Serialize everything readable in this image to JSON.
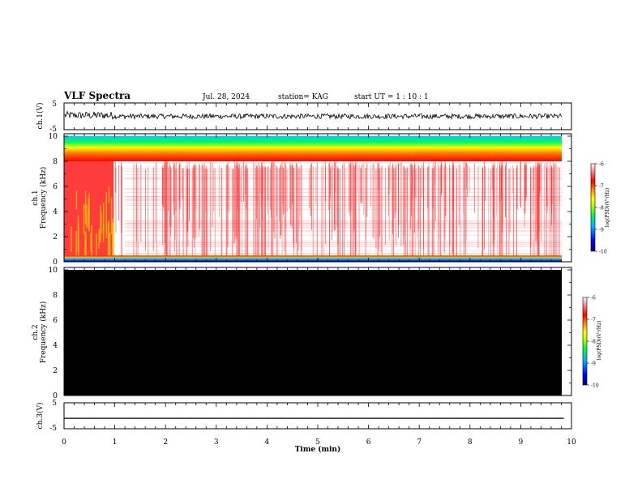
{
  "header": {
    "title": "VLF Spectra",
    "date": "Jul. 28, 2024",
    "station": "station= KAG",
    "start": "start UT =  1 : 10 : 1"
  },
  "chart_data": [
    {
      "type": "line",
      "panel": "ch1-waveform",
      "ylabel": "ch.1(V)",
      "ylim": [
        -5,
        5
      ],
      "yticks": [
        "5",
        "-5"
      ],
      "xlim": [
        0,
        10
      ],
      "description_level": {
        "before_1min": 0.3,
        "after_1min": 0.2
      }
    },
    {
      "type": "heatmap",
      "panel": "ch1-spectrogram",
      "ylabel_top": "ch.1",
      "ylabel": "Frequency (kHz)",
      "ylim": [
        0,
        10
      ],
      "yticks": [
        "0",
        "2",
        "4",
        "6",
        "8",
        "10"
      ],
      "xlim": [
        0,
        9.85
      ],
      "colorbar": {
        "label": "log(PSD)(V²/Hz)",
        "ticks": [
          "-6",
          "-7",
          "-8",
          "-9",
          "-10"
        ],
        "range": [
          -10,
          -6
        ]
      }
    },
    {
      "type": "heatmap",
      "panel": "ch2-spectrogram",
      "ylabel_top": "ch.2",
      "ylabel": "Frequency (kHz)",
      "ylim": [
        0,
        10
      ],
      "yticks": [
        "0",
        "2",
        "4",
        "6",
        "8",
        "10"
      ],
      "xlim": [
        0,
        9.85
      ],
      "fill": "#000000",
      "colorbar": {
        "label": "log(PSD)(V²/Hz)",
        "ticks": [
          "-6",
          "-7",
          "-8",
          "-9",
          "-10"
        ],
        "range": [
          -10,
          -6
        ]
      }
    },
    {
      "type": "line",
      "panel": "ch3-waveform",
      "ylabel": "ch.3(V)",
      "ylim": [
        -5,
        5
      ],
      "yticks": [
        "5",
        "-5"
      ],
      "x": [
        0,
        9.85
      ],
      "y": [
        -1,
        -1
      ]
    }
  ],
  "xaxis": {
    "label": "Time (min)",
    "ticks": [
      "0",
      "1",
      "2",
      "3",
      "4",
      "5",
      "6",
      "7",
      "8",
      "9",
      "10"
    ],
    "range": [
      0,
      10
    ]
  },
  "colors": {
    "background": "#ffffff",
    "ch2_fill": "#000000",
    "colormap": [
      "#0000a0",
      "#0000ff",
      "#00c0ff",
      "#00ff40",
      "#ffff00",
      "#ff8000",
      "#ff0000",
      "#ffffff"
    ]
  }
}
